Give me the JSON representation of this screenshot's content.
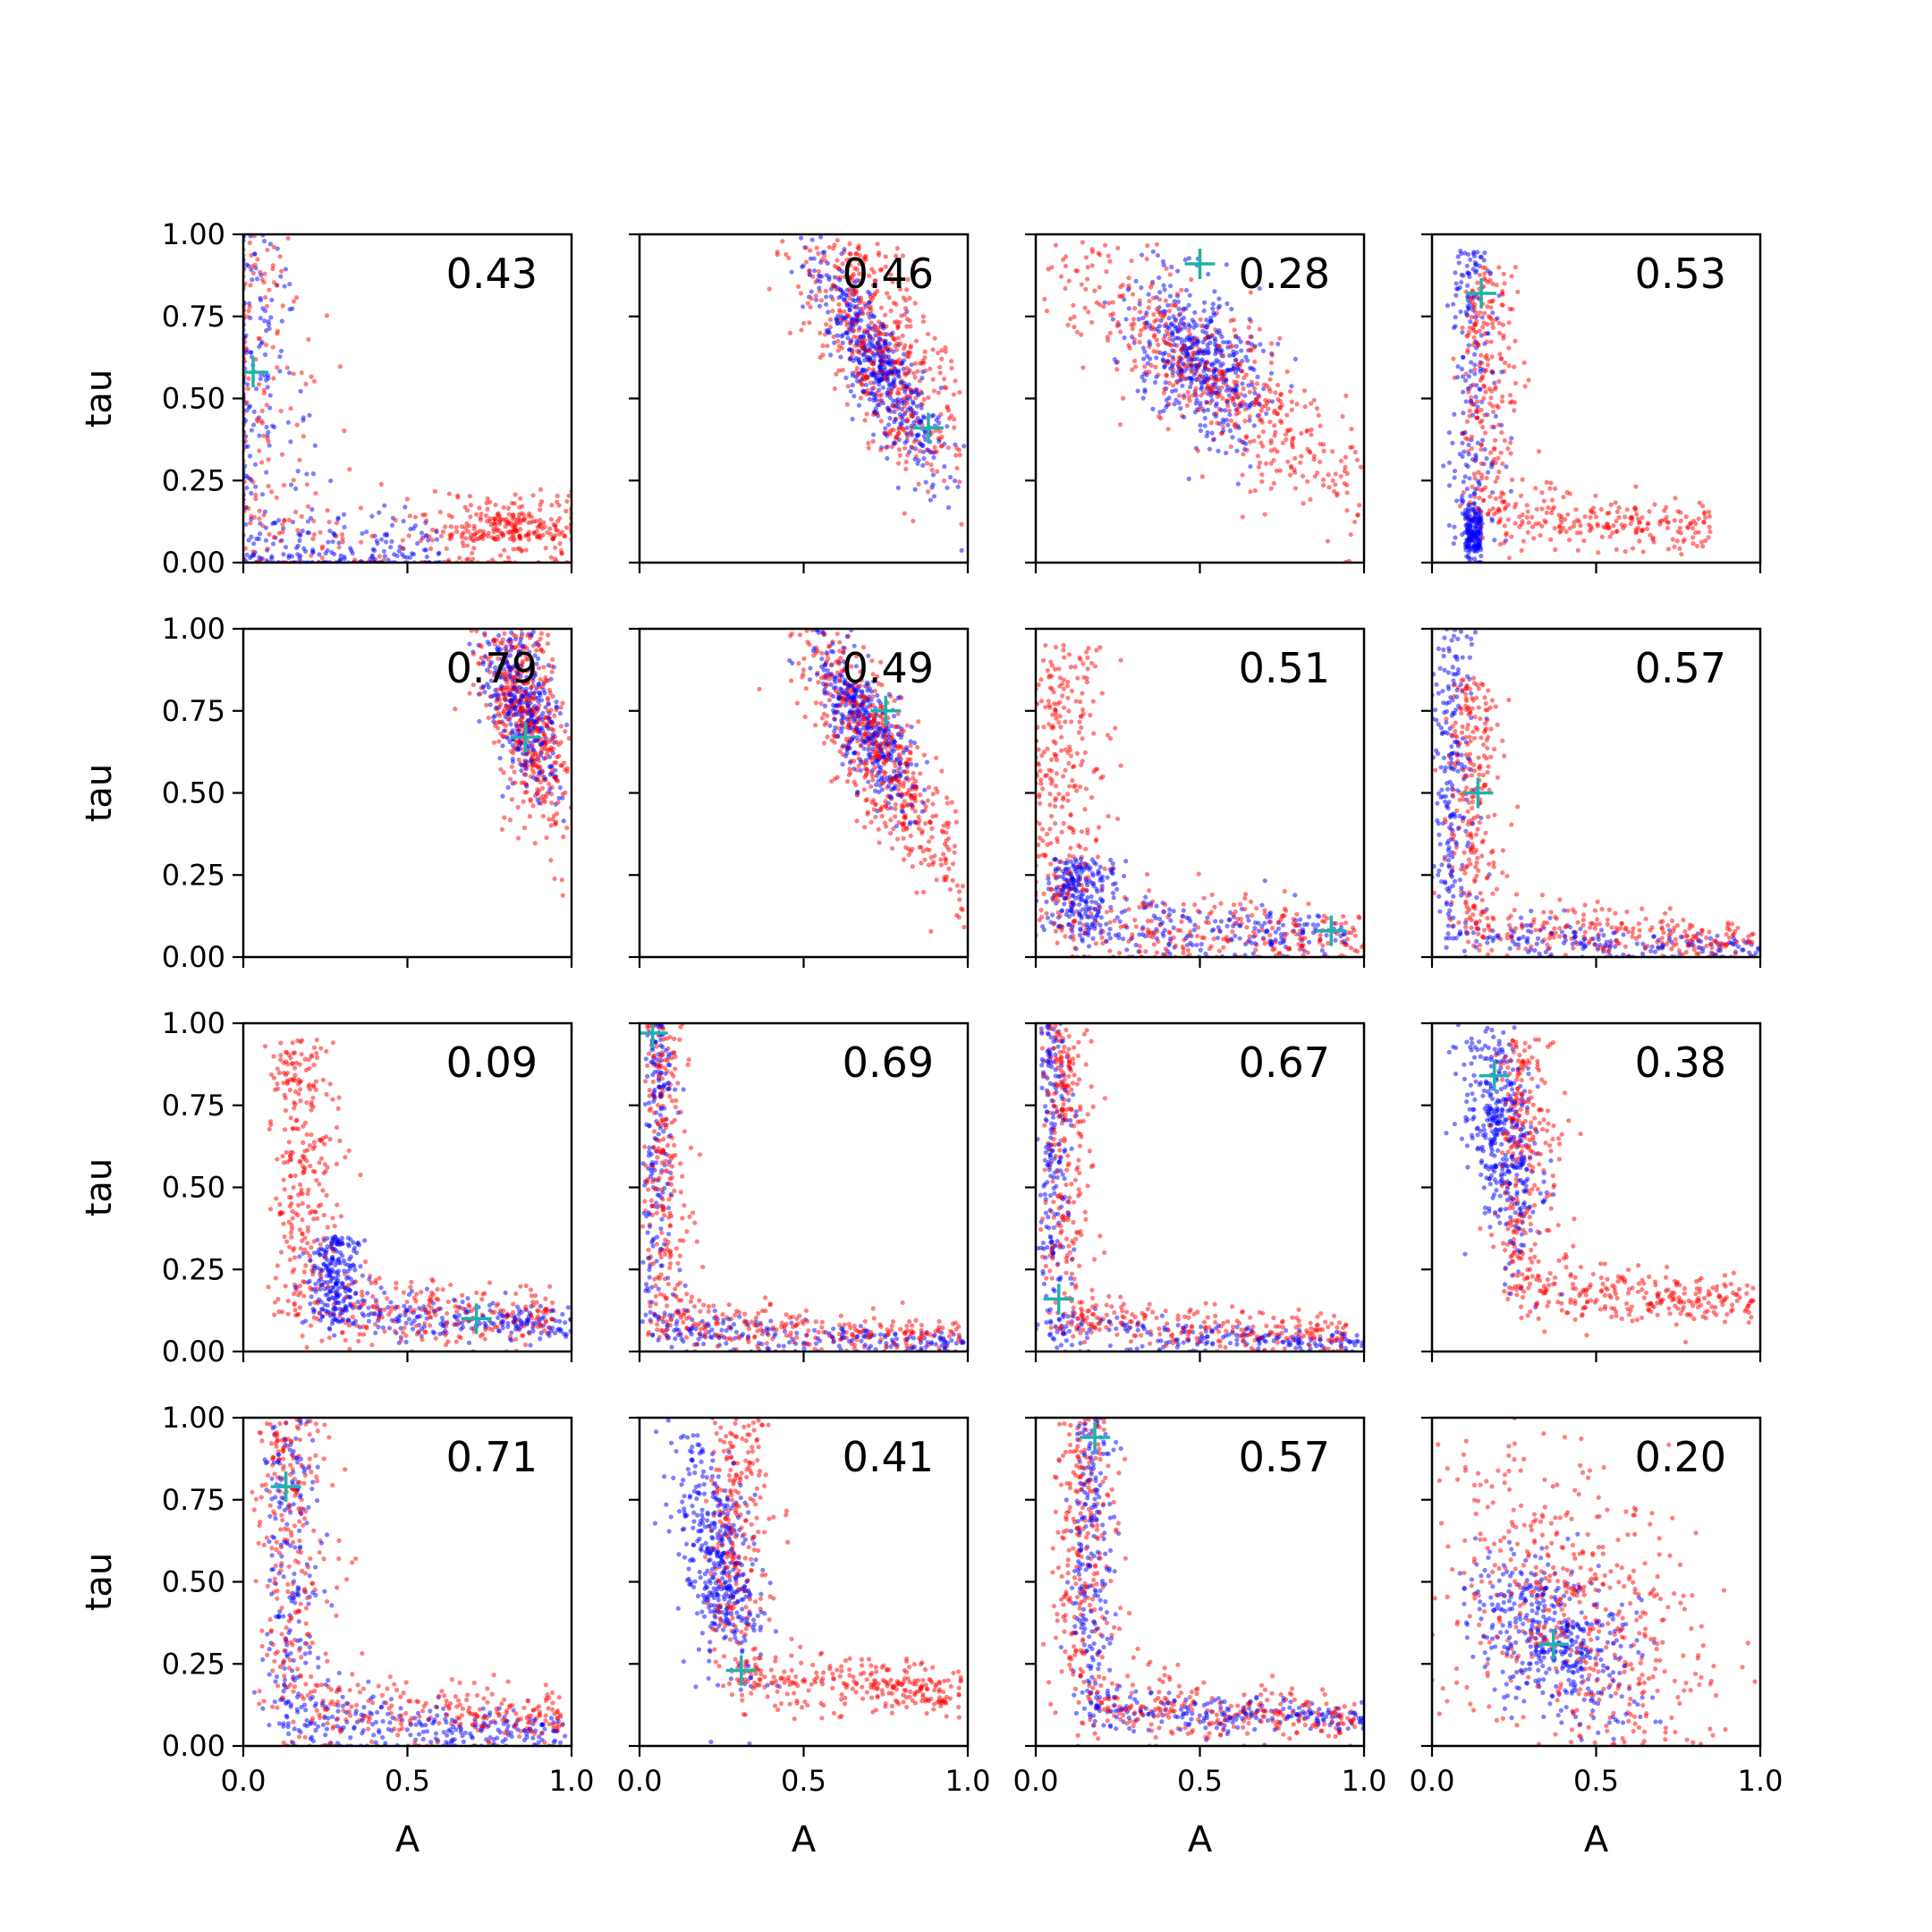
{
  "chart_data": {
    "type": "scatter",
    "layout": "4x4 grid of subplots, shared axes",
    "xlabel": "A",
    "ylabel": "tau",
    "xlim": [
      0,
      1
    ],
    "ylim": [
      0,
      1
    ],
    "xticks": [
      "0.0",
      "0.5",
      "1.0"
    ],
    "yticks": [
      "0.00",
      "0.25",
      "0.50",
      "0.75",
      "1.00"
    ],
    "grid": false,
    "legend": "none",
    "colors": {
      "series_a": "#ff0000",
      "series_b": "#0000ff",
      "marker": "#20b2aa"
    },
    "panels": [
      {
        "label": "0.43",
        "marker": [
          0.03,
          0.58
        ],
        "blue": {
          "shape": "L",
          "corner": [
            0.0,
            0.0
          ],
          "w": 0.1,
          "arms": [
            0.6,
            1.0
          ],
          "n": 360
        },
        "red": {
          "shape": "L",
          "corner": [
            0.0,
            0.0
          ],
          "w": 0.12,
          "arms": [
            1.0,
            1.0
          ],
          "n": 300,
          "extra": {
            "center": [
              0.82,
              0.07
            ],
            "spread": [
              0.12,
              0.06
            ],
            "n": 220
          }
        }
      },
      {
        "label": "0.46",
        "marker": [
          0.88,
          0.41
        ],
        "blue": {
          "shape": "band",
          "center": [
            0.73,
            0.6
          ],
          "spread": [
            0.1,
            0.17
          ],
          "rho": -0.85,
          "n": 500
        },
        "red": {
          "shape": "band",
          "center": [
            0.74,
            0.65
          ],
          "spread": [
            0.13,
            0.2
          ],
          "rho": -0.7,
          "n": 520
        }
      },
      {
        "label": "0.28",
        "marker": [
          0.5,
          0.91
        ],
        "blue": {
          "shape": "band",
          "center": [
            0.5,
            0.62
          ],
          "spread": [
            0.1,
            0.13
          ],
          "rho": -0.4,
          "n": 460
        },
        "red": {
          "shape": "band",
          "center": [
            0.55,
            0.55
          ],
          "spread": [
            0.25,
            0.22
          ],
          "rho": -0.85,
          "n": 560
        }
      },
      {
        "label": "0.53",
        "marker": [
          0.15,
          0.82
        ],
        "blue": {
          "shape": "L",
          "corner": [
            0.1,
            0.05
          ],
          "w": 0.06,
          "arms": [
            0.15,
            0.95
          ],
          "n": 360
        },
        "red": {
          "shape": "L",
          "corner": [
            0.14,
            0.1
          ],
          "w": 0.07,
          "arms": [
            0.85,
            0.9
          ],
          "n": 460
        }
      },
      {
        "label": "0.79",
        "marker": [
          0.86,
          0.67
        ],
        "blue": {
          "shape": "band",
          "center": [
            0.85,
            0.77
          ],
          "spread": [
            0.06,
            0.14
          ],
          "rho": -0.5,
          "n": 360
        },
        "red": {
          "shape": "band",
          "center": [
            0.87,
            0.72
          ],
          "spread": [
            0.07,
            0.17
          ],
          "rho": -0.55,
          "n": 500
        }
      },
      {
        "label": "0.49",
        "marker": [
          0.75,
          0.75
        ],
        "blue": {
          "shape": "band",
          "center": [
            0.69,
            0.7
          ],
          "spread": [
            0.08,
            0.13
          ],
          "rho": -0.75,
          "n": 400
        },
        "red": {
          "shape": "band",
          "center": [
            0.74,
            0.6
          ],
          "spread": [
            0.13,
            0.22
          ],
          "rho": -0.85,
          "n": 560
        }
      },
      {
        "label": "0.51",
        "marker": [
          0.9,
          0.08
        ],
        "blue": {
          "shape": "L",
          "corner": [
            0.1,
            0.06
          ],
          "w": 0.08,
          "arms": [
            0.95,
            0.3
          ],
          "n": 420
        },
        "red": {
          "shape": "L",
          "corner": [
            0.05,
            0.06
          ],
          "w": 0.1,
          "arms": [
            1.0,
            0.95
          ],
          "n": 520
        }
      },
      {
        "label": "0.57",
        "marker": [
          0.14,
          0.5
        ],
        "blue": {
          "shape": "L",
          "corner": [
            0.04,
            0.02
          ],
          "w": 0.05,
          "arms": [
            1.0,
            1.0
          ],
          "n": 380
        },
        "red": {
          "shape": "L",
          "corner": [
            0.1,
            0.05
          ],
          "w": 0.07,
          "arms": [
            0.98,
            0.85
          ],
          "n": 480
        }
      },
      {
        "label": "0.09",
        "marker": [
          0.71,
          0.1
        ],
        "blue": {
          "shape": "L",
          "corner": [
            0.25,
            0.08
          ],
          "w": 0.06,
          "arms": [
            1.0,
            0.35
          ],
          "n": 440
        },
        "red": {
          "shape": "L",
          "corner": [
            0.15,
            0.1
          ],
          "w": 0.09,
          "arms": [
            0.95,
            0.95
          ],
          "n": 520
        }
      },
      {
        "label": "0.69",
        "marker": [
          0.04,
          0.97
        ],
        "blue": {
          "shape": "L",
          "corner": [
            0.04,
            0.02
          ],
          "w": 0.04,
          "arms": [
            1.0,
            1.0
          ],
          "n": 380
        },
        "red": {
          "shape": "L",
          "corner": [
            0.06,
            0.04
          ],
          "w": 0.06,
          "arms": [
            0.98,
            1.0
          ],
          "n": 480
        }
      },
      {
        "label": "0.67",
        "marker": [
          0.07,
          0.16
        ],
        "blue": {
          "shape": "L",
          "corner": [
            0.04,
            0.02
          ],
          "w": 0.04,
          "arms": [
            1.0,
            1.0
          ],
          "n": 380
        },
        "red": {
          "shape": "L",
          "corner": [
            0.07,
            0.05
          ],
          "w": 0.06,
          "arms": [
            0.95,
            1.0
          ],
          "n": 480
        }
      },
      {
        "label": "0.38",
        "marker": [
          0.19,
          0.84
        ],
        "blue": {
          "shape": "band",
          "center": [
            0.21,
            0.66
          ],
          "spread": [
            0.06,
            0.18
          ],
          "rho": -0.4,
          "n": 420
        },
        "red": {
          "shape": "L",
          "corner": [
            0.25,
            0.15
          ],
          "w": 0.08,
          "arms": [
            0.98,
            0.95
          ],
          "n": 520
        }
      },
      {
        "label": "0.71",
        "marker": [
          0.13,
          0.79
        ],
        "blue": {
          "shape": "L",
          "corner": [
            0.12,
            0.04
          ],
          "w": 0.07,
          "arms": [
            0.98,
            1.0
          ],
          "n": 420
        },
        "red": {
          "shape": "L",
          "corner": [
            0.12,
            0.08
          ],
          "w": 0.1,
          "arms": [
            0.98,
            1.0
          ],
          "n": 480
        }
      },
      {
        "label": "0.41",
        "marker": [
          0.31,
          0.23
        ],
        "blue": {
          "shape": "band",
          "center": [
            0.24,
            0.57
          ],
          "spread": [
            0.07,
            0.2
          ],
          "rho": -0.55,
          "n": 420
        },
        "red": {
          "shape": "L",
          "corner": [
            0.27,
            0.17
          ],
          "w": 0.08,
          "arms": [
            0.98,
            1.0
          ],
          "n": 520
        }
      },
      {
        "label": "0.57",
        "marker": [
          0.18,
          0.94
        ],
        "blue": {
          "shape": "L",
          "corner": [
            0.15,
            0.08
          ],
          "w": 0.05,
          "arms": [
            1.0,
            1.0
          ],
          "n": 420
        },
        "red": {
          "shape": "L",
          "corner": [
            0.12,
            0.08
          ],
          "w": 0.08,
          "arms": [
            0.98,
            1.0
          ],
          "n": 500
        }
      },
      {
        "label": "0.20",
        "marker": [
          0.37,
          0.31
        ],
        "blue": {
          "shape": "band",
          "center": [
            0.37,
            0.33
          ],
          "spread": [
            0.13,
            0.13
          ],
          "rho": -0.45,
          "n": 440
        },
        "red": {
          "shape": "band",
          "center": [
            0.47,
            0.38
          ],
          "spread": [
            0.25,
            0.27
          ],
          "rho": -0.55,
          "n": 560
        }
      }
    ]
  }
}
